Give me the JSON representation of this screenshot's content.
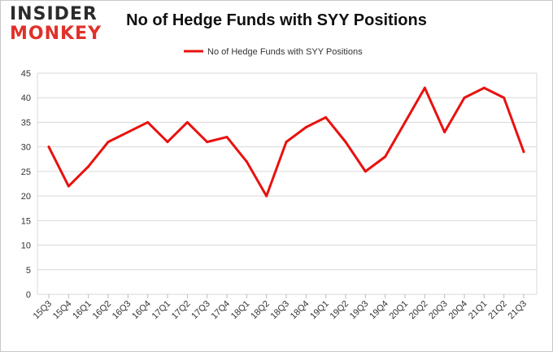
{
  "logo": {
    "line1": "INSIDER",
    "line2": "MONKEY"
  },
  "chart_data": {
    "type": "line",
    "title": "No of Hedge Funds with SYY Positions",
    "xlabel": "",
    "ylabel": "",
    "ylim": [
      0,
      45
    ],
    "yticks": [
      0,
      5,
      10,
      15,
      20,
      25,
      30,
      35,
      40,
      45
    ],
    "grid": true,
    "legend_position": "top-center",
    "categories": [
      "15Q3",
      "15Q4",
      "16Q1",
      "16Q2",
      "16Q3",
      "16Q4",
      "17Q1",
      "17Q2",
      "17Q3",
      "17Q4",
      "18Q1",
      "18Q2",
      "18Q3",
      "18Q4",
      "19Q1",
      "19Q2",
      "19Q3",
      "19Q4",
      "20Q1",
      "20Q2",
      "20Q3",
      "20Q4",
      "21Q1",
      "21Q2",
      "21Q3"
    ],
    "series": [
      {
        "name": "No of Hedge Funds with SYY Positions",
        "color": "#e8120f",
        "values": [
          30,
          22,
          26,
          31,
          33,
          35,
          31,
          35,
          31,
          32,
          27,
          20,
          31,
          34,
          36,
          31,
          25,
          28,
          35,
          42,
          33,
          40,
          42,
          40,
          29
        ]
      }
    ]
  }
}
